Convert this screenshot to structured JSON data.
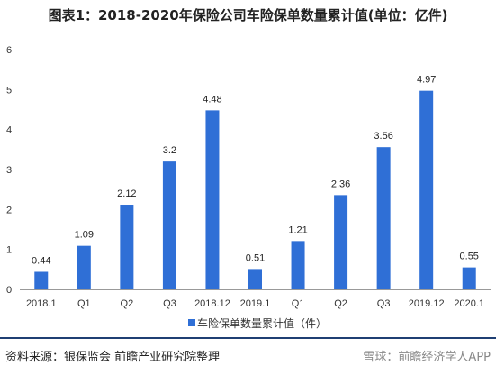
{
  "title": "图表1：2018-2020年保险公司车险保单数量累计值(单位：亿件)",
  "source": "资料来源：银保监会 前瞻产业研究院整理",
  "credit": "雪球：前瞻经济学人APP",
  "colors": {
    "bar": "#2f6fd6",
    "axis": "#999999",
    "bottom_line": "#1f3f73"
  },
  "chart_data": {
    "type": "bar",
    "title": "图表1：2018-2020年保险公司车险保单数量累计值(单位：亿件)",
    "categories": [
      "2018.1",
      "Q1",
      "Q2",
      "Q3",
      "2018.12",
      "2019.1",
      "Q1",
      "Q2",
      "Q3",
      "2019.12",
      "2020.1"
    ],
    "series": [
      {
        "name": "车险保单数量累计值（件）",
        "values": [
          0.44,
          1.09,
          2.12,
          3.2,
          4.48,
          0.51,
          1.21,
          2.36,
          3.56,
          4.97,
          0.55
        ]
      }
    ],
    "data_labels": [
      "0.44",
      "1.09",
      "2.12",
      "3.2",
      "4.48",
      "0.51",
      "1.21",
      "2.36",
      "3.56",
      "4.97",
      "0.55"
    ],
    "ylim": [
      0,
      6
    ],
    "yticks": [
      0,
      1,
      2,
      3,
      4,
      5,
      6
    ],
    "grid": false,
    "legend": "bottom"
  }
}
